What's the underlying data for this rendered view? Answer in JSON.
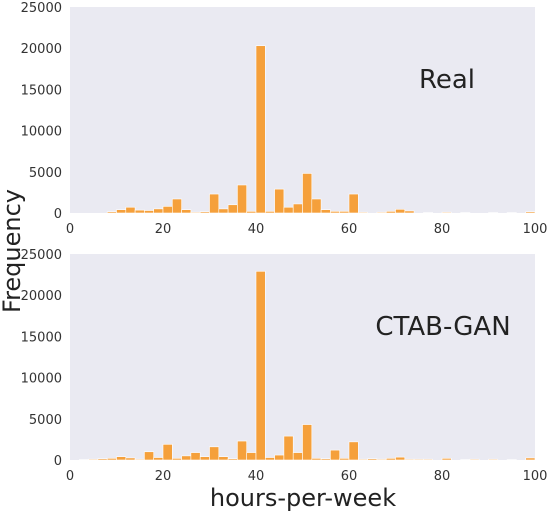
{
  "colors": {
    "bar": "#f5a03b",
    "panel_bg": "#eaeaf2",
    "bar_edge": "#ffffff"
  },
  "figure": {
    "ylabel": "Frequency",
    "xlabel": "hours-per-week"
  },
  "chart_data": [
    {
      "type": "bar",
      "annotation": "Real",
      "xlim": [
        0,
        100
      ],
      "ylim": [
        0,
        25000
      ],
      "xticks": [
        "0",
        "20",
        "40",
        "60",
        "80",
        "100"
      ],
      "yticks": [
        "0",
        "5000",
        "10000",
        "15000",
        "20000",
        "25000"
      ],
      "grid": false,
      "bin_width": 2,
      "bins": [
        {
          "x": 8,
          "y": 150
        },
        {
          "x": 10,
          "y": 400
        },
        {
          "x": 12,
          "y": 700
        },
        {
          "x": 14,
          "y": 350
        },
        {
          "x": 16,
          "y": 300
        },
        {
          "x": 18,
          "y": 500
        },
        {
          "x": 20,
          "y": 800
        },
        {
          "x": 22,
          "y": 1700
        },
        {
          "x": 24,
          "y": 400
        },
        {
          "x": 26,
          "y": 100
        },
        {
          "x": 28,
          "y": 150
        },
        {
          "x": 30,
          "y": 2300
        },
        {
          "x": 32,
          "y": 500
        },
        {
          "x": 34,
          "y": 1000
        },
        {
          "x": 36,
          "y": 3400
        },
        {
          "x": 38,
          "y": 200
        },
        {
          "x": 40,
          "y": 20300
        },
        {
          "x": 42,
          "y": 200
        },
        {
          "x": 44,
          "y": 2900
        },
        {
          "x": 46,
          "y": 700
        },
        {
          "x": 48,
          "y": 1100
        },
        {
          "x": 50,
          "y": 4800
        },
        {
          "x": 52,
          "y": 1700
        },
        {
          "x": 54,
          "y": 400
        },
        {
          "x": 56,
          "y": 200
        },
        {
          "x": 58,
          "y": 200
        },
        {
          "x": 60,
          "y": 2300
        },
        {
          "x": 62,
          "y": 100
        },
        {
          "x": 66,
          "y": 100
        },
        {
          "x": 68,
          "y": 200
        },
        {
          "x": 70,
          "y": 450
        },
        {
          "x": 72,
          "y": 250
        },
        {
          "x": 76,
          "y": 50
        },
        {
          "x": 80,
          "y": 100
        },
        {
          "x": 84,
          "y": 50
        },
        {
          "x": 90,
          "y": 50
        },
        {
          "x": 94,
          "y": 50
        },
        {
          "x": 98,
          "y": 150
        }
      ]
    },
    {
      "type": "bar",
      "annotation": "CTAB-GAN",
      "xlim": [
        0,
        100
      ],
      "ylim": [
        0,
        25000
      ],
      "xticks": [
        "0",
        "20",
        "40",
        "60",
        "80",
        "100"
      ],
      "yticks": [
        "0",
        "5000",
        "10000",
        "15000",
        "20000",
        "25000"
      ],
      "grid": false,
      "bin_width": 2,
      "bins": [
        {
          "x": 2,
          "y": 50
        },
        {
          "x": 4,
          "y": 100
        },
        {
          "x": 6,
          "y": 150
        },
        {
          "x": 8,
          "y": 200
        },
        {
          "x": 10,
          "y": 400
        },
        {
          "x": 12,
          "y": 250
        },
        {
          "x": 14,
          "y": 100
        },
        {
          "x": 16,
          "y": 1000
        },
        {
          "x": 18,
          "y": 300
        },
        {
          "x": 20,
          "y": 1900
        },
        {
          "x": 22,
          "y": 200
        },
        {
          "x": 24,
          "y": 500
        },
        {
          "x": 26,
          "y": 900
        },
        {
          "x": 28,
          "y": 400
        },
        {
          "x": 30,
          "y": 1600
        },
        {
          "x": 32,
          "y": 400
        },
        {
          "x": 34,
          "y": 150
        },
        {
          "x": 36,
          "y": 2300
        },
        {
          "x": 38,
          "y": 900
        },
        {
          "x": 40,
          "y": 22900
        },
        {
          "x": 42,
          "y": 300
        },
        {
          "x": 44,
          "y": 600
        },
        {
          "x": 46,
          "y": 2900
        },
        {
          "x": 48,
          "y": 900
        },
        {
          "x": 50,
          "y": 4300
        },
        {
          "x": 52,
          "y": 200
        },
        {
          "x": 54,
          "y": 150
        },
        {
          "x": 56,
          "y": 1200
        },
        {
          "x": 58,
          "y": 200
        },
        {
          "x": 60,
          "y": 2200
        },
        {
          "x": 62,
          "y": 100
        },
        {
          "x": 64,
          "y": 150
        },
        {
          "x": 66,
          "y": 100
        },
        {
          "x": 68,
          "y": 200
        },
        {
          "x": 70,
          "y": 350
        },
        {
          "x": 72,
          "y": 100
        },
        {
          "x": 74,
          "y": 100
        },
        {
          "x": 76,
          "y": 100
        },
        {
          "x": 80,
          "y": 200
        },
        {
          "x": 84,
          "y": 50
        },
        {
          "x": 86,
          "y": 100
        },
        {
          "x": 90,
          "y": 100
        },
        {
          "x": 94,
          "y": 50
        },
        {
          "x": 98,
          "y": 250
        }
      ]
    }
  ]
}
